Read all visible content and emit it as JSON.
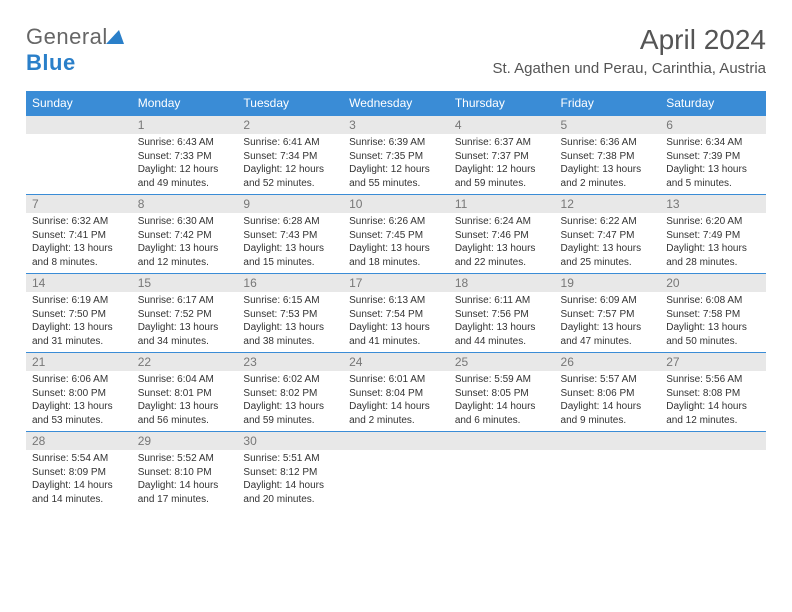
{
  "brand": {
    "part1": "General",
    "part2": "Blue"
  },
  "title": "April 2024",
  "location": "St. Agathen und Perau, Carinthia, Austria",
  "dayNames": [
    "Sunday",
    "Monday",
    "Tuesday",
    "Wednesday",
    "Thursday",
    "Friday",
    "Saturday"
  ],
  "colors": {
    "headerBg": "#3a8cd6",
    "headerText": "#ffffff",
    "dayNumBg": "#e8e8e8",
    "dayNumText": "#777777",
    "brandBlue": "#2a7fc9",
    "bodyText": "#333333"
  },
  "typography": {
    "monthTitleSize": 28,
    "locationSize": 15,
    "dayHeaderSize": 12,
    "dayNumSize": 12,
    "cellTextSize": 10
  },
  "weeks": [
    [
      {
        "n": "",
        "sunrise": "",
        "sunset": "",
        "daylight": ""
      },
      {
        "n": "1",
        "sunrise": "Sunrise: 6:43 AM",
        "sunset": "Sunset: 7:33 PM",
        "daylight": "Daylight: 12 hours and 49 minutes."
      },
      {
        "n": "2",
        "sunrise": "Sunrise: 6:41 AM",
        "sunset": "Sunset: 7:34 PM",
        "daylight": "Daylight: 12 hours and 52 minutes."
      },
      {
        "n": "3",
        "sunrise": "Sunrise: 6:39 AM",
        "sunset": "Sunset: 7:35 PM",
        "daylight": "Daylight: 12 hours and 55 minutes."
      },
      {
        "n": "4",
        "sunrise": "Sunrise: 6:37 AM",
        "sunset": "Sunset: 7:37 PM",
        "daylight": "Daylight: 12 hours and 59 minutes."
      },
      {
        "n": "5",
        "sunrise": "Sunrise: 6:36 AM",
        "sunset": "Sunset: 7:38 PM",
        "daylight": "Daylight: 13 hours and 2 minutes."
      },
      {
        "n": "6",
        "sunrise": "Sunrise: 6:34 AM",
        "sunset": "Sunset: 7:39 PM",
        "daylight": "Daylight: 13 hours and 5 minutes."
      }
    ],
    [
      {
        "n": "7",
        "sunrise": "Sunrise: 6:32 AM",
        "sunset": "Sunset: 7:41 PM",
        "daylight": "Daylight: 13 hours and 8 minutes."
      },
      {
        "n": "8",
        "sunrise": "Sunrise: 6:30 AM",
        "sunset": "Sunset: 7:42 PM",
        "daylight": "Daylight: 13 hours and 12 minutes."
      },
      {
        "n": "9",
        "sunrise": "Sunrise: 6:28 AM",
        "sunset": "Sunset: 7:43 PM",
        "daylight": "Daylight: 13 hours and 15 minutes."
      },
      {
        "n": "10",
        "sunrise": "Sunrise: 6:26 AM",
        "sunset": "Sunset: 7:45 PM",
        "daylight": "Daylight: 13 hours and 18 minutes."
      },
      {
        "n": "11",
        "sunrise": "Sunrise: 6:24 AM",
        "sunset": "Sunset: 7:46 PM",
        "daylight": "Daylight: 13 hours and 22 minutes."
      },
      {
        "n": "12",
        "sunrise": "Sunrise: 6:22 AM",
        "sunset": "Sunset: 7:47 PM",
        "daylight": "Daylight: 13 hours and 25 minutes."
      },
      {
        "n": "13",
        "sunrise": "Sunrise: 6:20 AM",
        "sunset": "Sunset: 7:49 PM",
        "daylight": "Daylight: 13 hours and 28 minutes."
      }
    ],
    [
      {
        "n": "14",
        "sunrise": "Sunrise: 6:19 AM",
        "sunset": "Sunset: 7:50 PM",
        "daylight": "Daylight: 13 hours and 31 minutes."
      },
      {
        "n": "15",
        "sunrise": "Sunrise: 6:17 AM",
        "sunset": "Sunset: 7:52 PM",
        "daylight": "Daylight: 13 hours and 34 minutes."
      },
      {
        "n": "16",
        "sunrise": "Sunrise: 6:15 AM",
        "sunset": "Sunset: 7:53 PM",
        "daylight": "Daylight: 13 hours and 38 minutes."
      },
      {
        "n": "17",
        "sunrise": "Sunrise: 6:13 AM",
        "sunset": "Sunset: 7:54 PM",
        "daylight": "Daylight: 13 hours and 41 minutes."
      },
      {
        "n": "18",
        "sunrise": "Sunrise: 6:11 AM",
        "sunset": "Sunset: 7:56 PM",
        "daylight": "Daylight: 13 hours and 44 minutes."
      },
      {
        "n": "19",
        "sunrise": "Sunrise: 6:09 AM",
        "sunset": "Sunset: 7:57 PM",
        "daylight": "Daylight: 13 hours and 47 minutes."
      },
      {
        "n": "20",
        "sunrise": "Sunrise: 6:08 AM",
        "sunset": "Sunset: 7:58 PM",
        "daylight": "Daylight: 13 hours and 50 minutes."
      }
    ],
    [
      {
        "n": "21",
        "sunrise": "Sunrise: 6:06 AM",
        "sunset": "Sunset: 8:00 PM",
        "daylight": "Daylight: 13 hours and 53 minutes."
      },
      {
        "n": "22",
        "sunrise": "Sunrise: 6:04 AM",
        "sunset": "Sunset: 8:01 PM",
        "daylight": "Daylight: 13 hours and 56 minutes."
      },
      {
        "n": "23",
        "sunrise": "Sunrise: 6:02 AM",
        "sunset": "Sunset: 8:02 PM",
        "daylight": "Daylight: 13 hours and 59 minutes."
      },
      {
        "n": "24",
        "sunrise": "Sunrise: 6:01 AM",
        "sunset": "Sunset: 8:04 PM",
        "daylight": "Daylight: 14 hours and 2 minutes."
      },
      {
        "n": "25",
        "sunrise": "Sunrise: 5:59 AM",
        "sunset": "Sunset: 8:05 PM",
        "daylight": "Daylight: 14 hours and 6 minutes."
      },
      {
        "n": "26",
        "sunrise": "Sunrise: 5:57 AM",
        "sunset": "Sunset: 8:06 PM",
        "daylight": "Daylight: 14 hours and 9 minutes."
      },
      {
        "n": "27",
        "sunrise": "Sunrise: 5:56 AM",
        "sunset": "Sunset: 8:08 PM",
        "daylight": "Daylight: 14 hours and 12 minutes."
      }
    ],
    [
      {
        "n": "28",
        "sunrise": "Sunrise: 5:54 AM",
        "sunset": "Sunset: 8:09 PM",
        "daylight": "Daylight: 14 hours and 14 minutes."
      },
      {
        "n": "29",
        "sunrise": "Sunrise: 5:52 AM",
        "sunset": "Sunset: 8:10 PM",
        "daylight": "Daylight: 14 hours and 17 minutes."
      },
      {
        "n": "30",
        "sunrise": "Sunrise: 5:51 AM",
        "sunset": "Sunset: 8:12 PM",
        "daylight": "Daylight: 14 hours and 20 minutes."
      },
      {
        "n": "",
        "sunrise": "",
        "sunset": "",
        "daylight": ""
      },
      {
        "n": "",
        "sunrise": "",
        "sunset": "",
        "daylight": ""
      },
      {
        "n": "",
        "sunrise": "",
        "sunset": "",
        "daylight": ""
      },
      {
        "n": "",
        "sunrise": "",
        "sunset": "",
        "daylight": ""
      }
    ]
  ]
}
